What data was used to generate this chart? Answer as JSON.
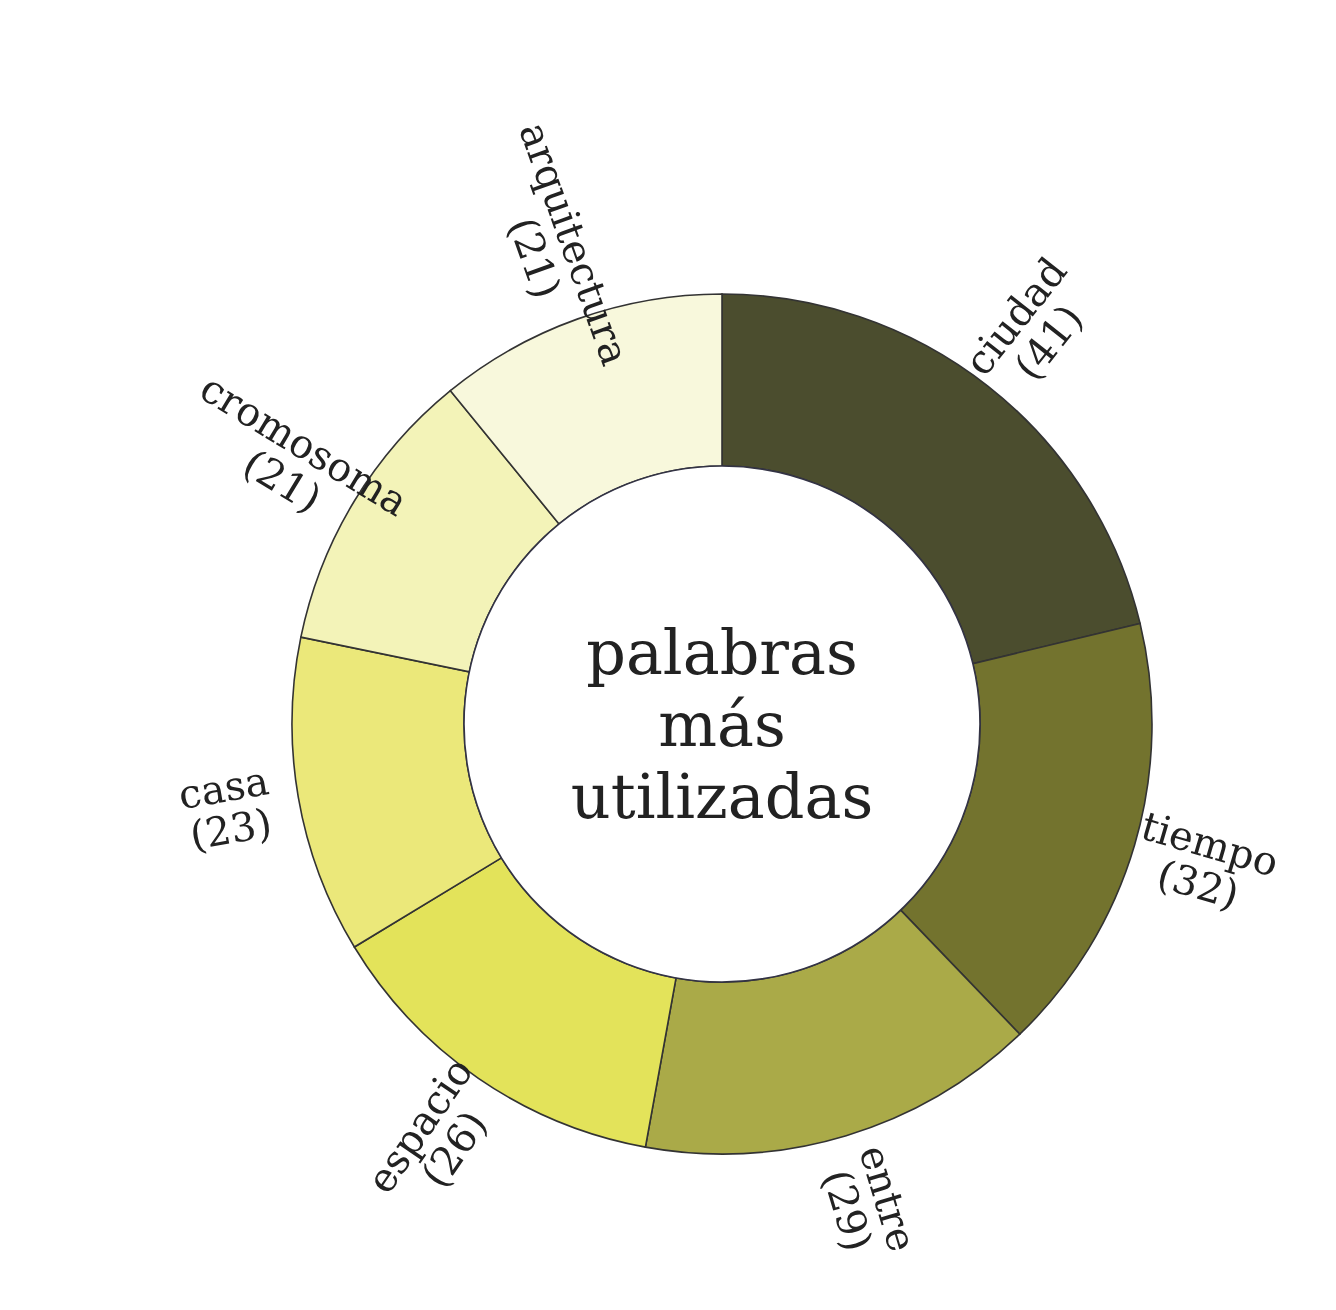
{
  "chart_data": {
    "type": "donut",
    "title": "palabras más utilizadas",
    "categories": [
      "ciudad",
      "tiempo",
      "entre",
      "espacio",
      "casa",
      "cromosoma",
      "arquitectura"
    ],
    "values": [
      41,
      32,
      29,
      26,
      23,
      21,
      21
    ],
    "value_labels": [
      "(41)",
      "(32)",
      "(29)",
      "(26)",
      "(23)",
      "(21)",
      "(21)"
    ],
    "colors": [
      "#4b4d2e",
      "#73732e",
      "#aaaa48",
      "#e3e35a",
      "#ebe87a",
      "#f3f3b8",
      "#f8f8dc"
    ]
  }
}
